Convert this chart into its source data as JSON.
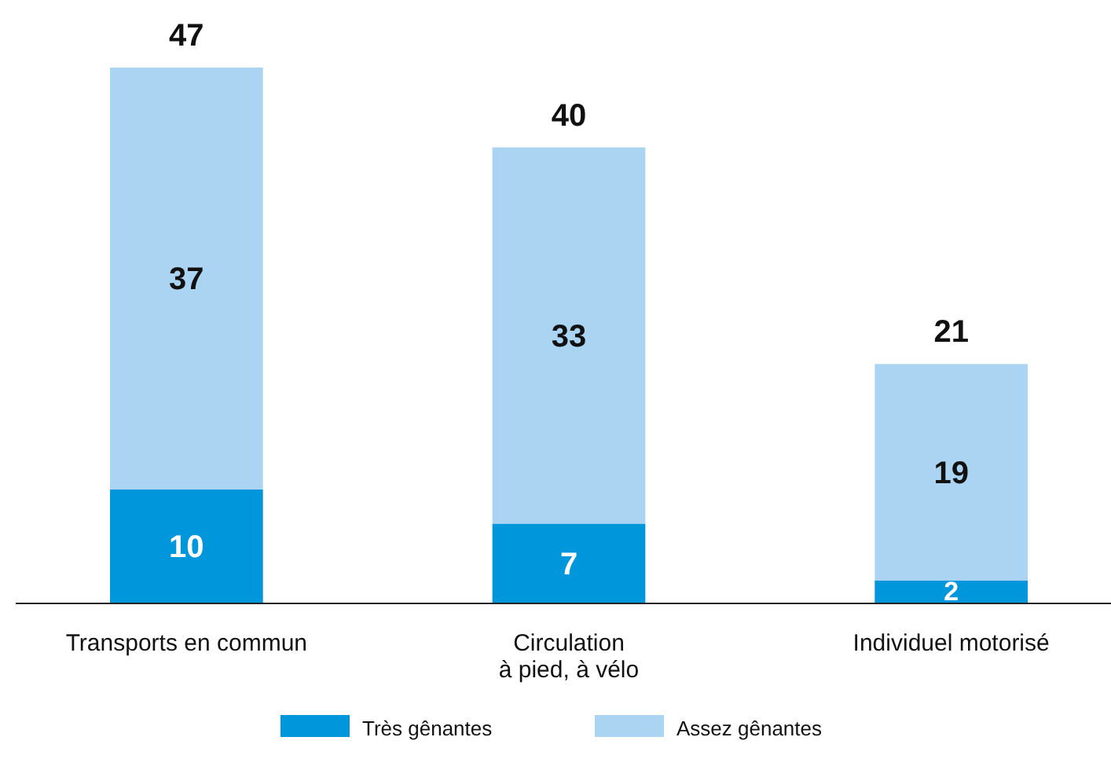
{
  "chart_data": {
    "type": "bar",
    "stacked": true,
    "categories": [
      "Transports en commun",
      "Circulation\nà pied, à vélo",
      "Individuel motorisé"
    ],
    "series": [
      {
        "name": "Très gênantes",
        "color": "#0096dc",
        "values": [
          10,
          7,
          2
        ]
      },
      {
        "name": "Assez gênantes",
        "color": "#aad4f2",
        "values": [
          37,
          33,
          19
        ]
      }
    ],
    "data_labels": true,
    "totals": [
      "47",
      "40",
      "21"
    ],
    "legend": "bottom"
  }
}
